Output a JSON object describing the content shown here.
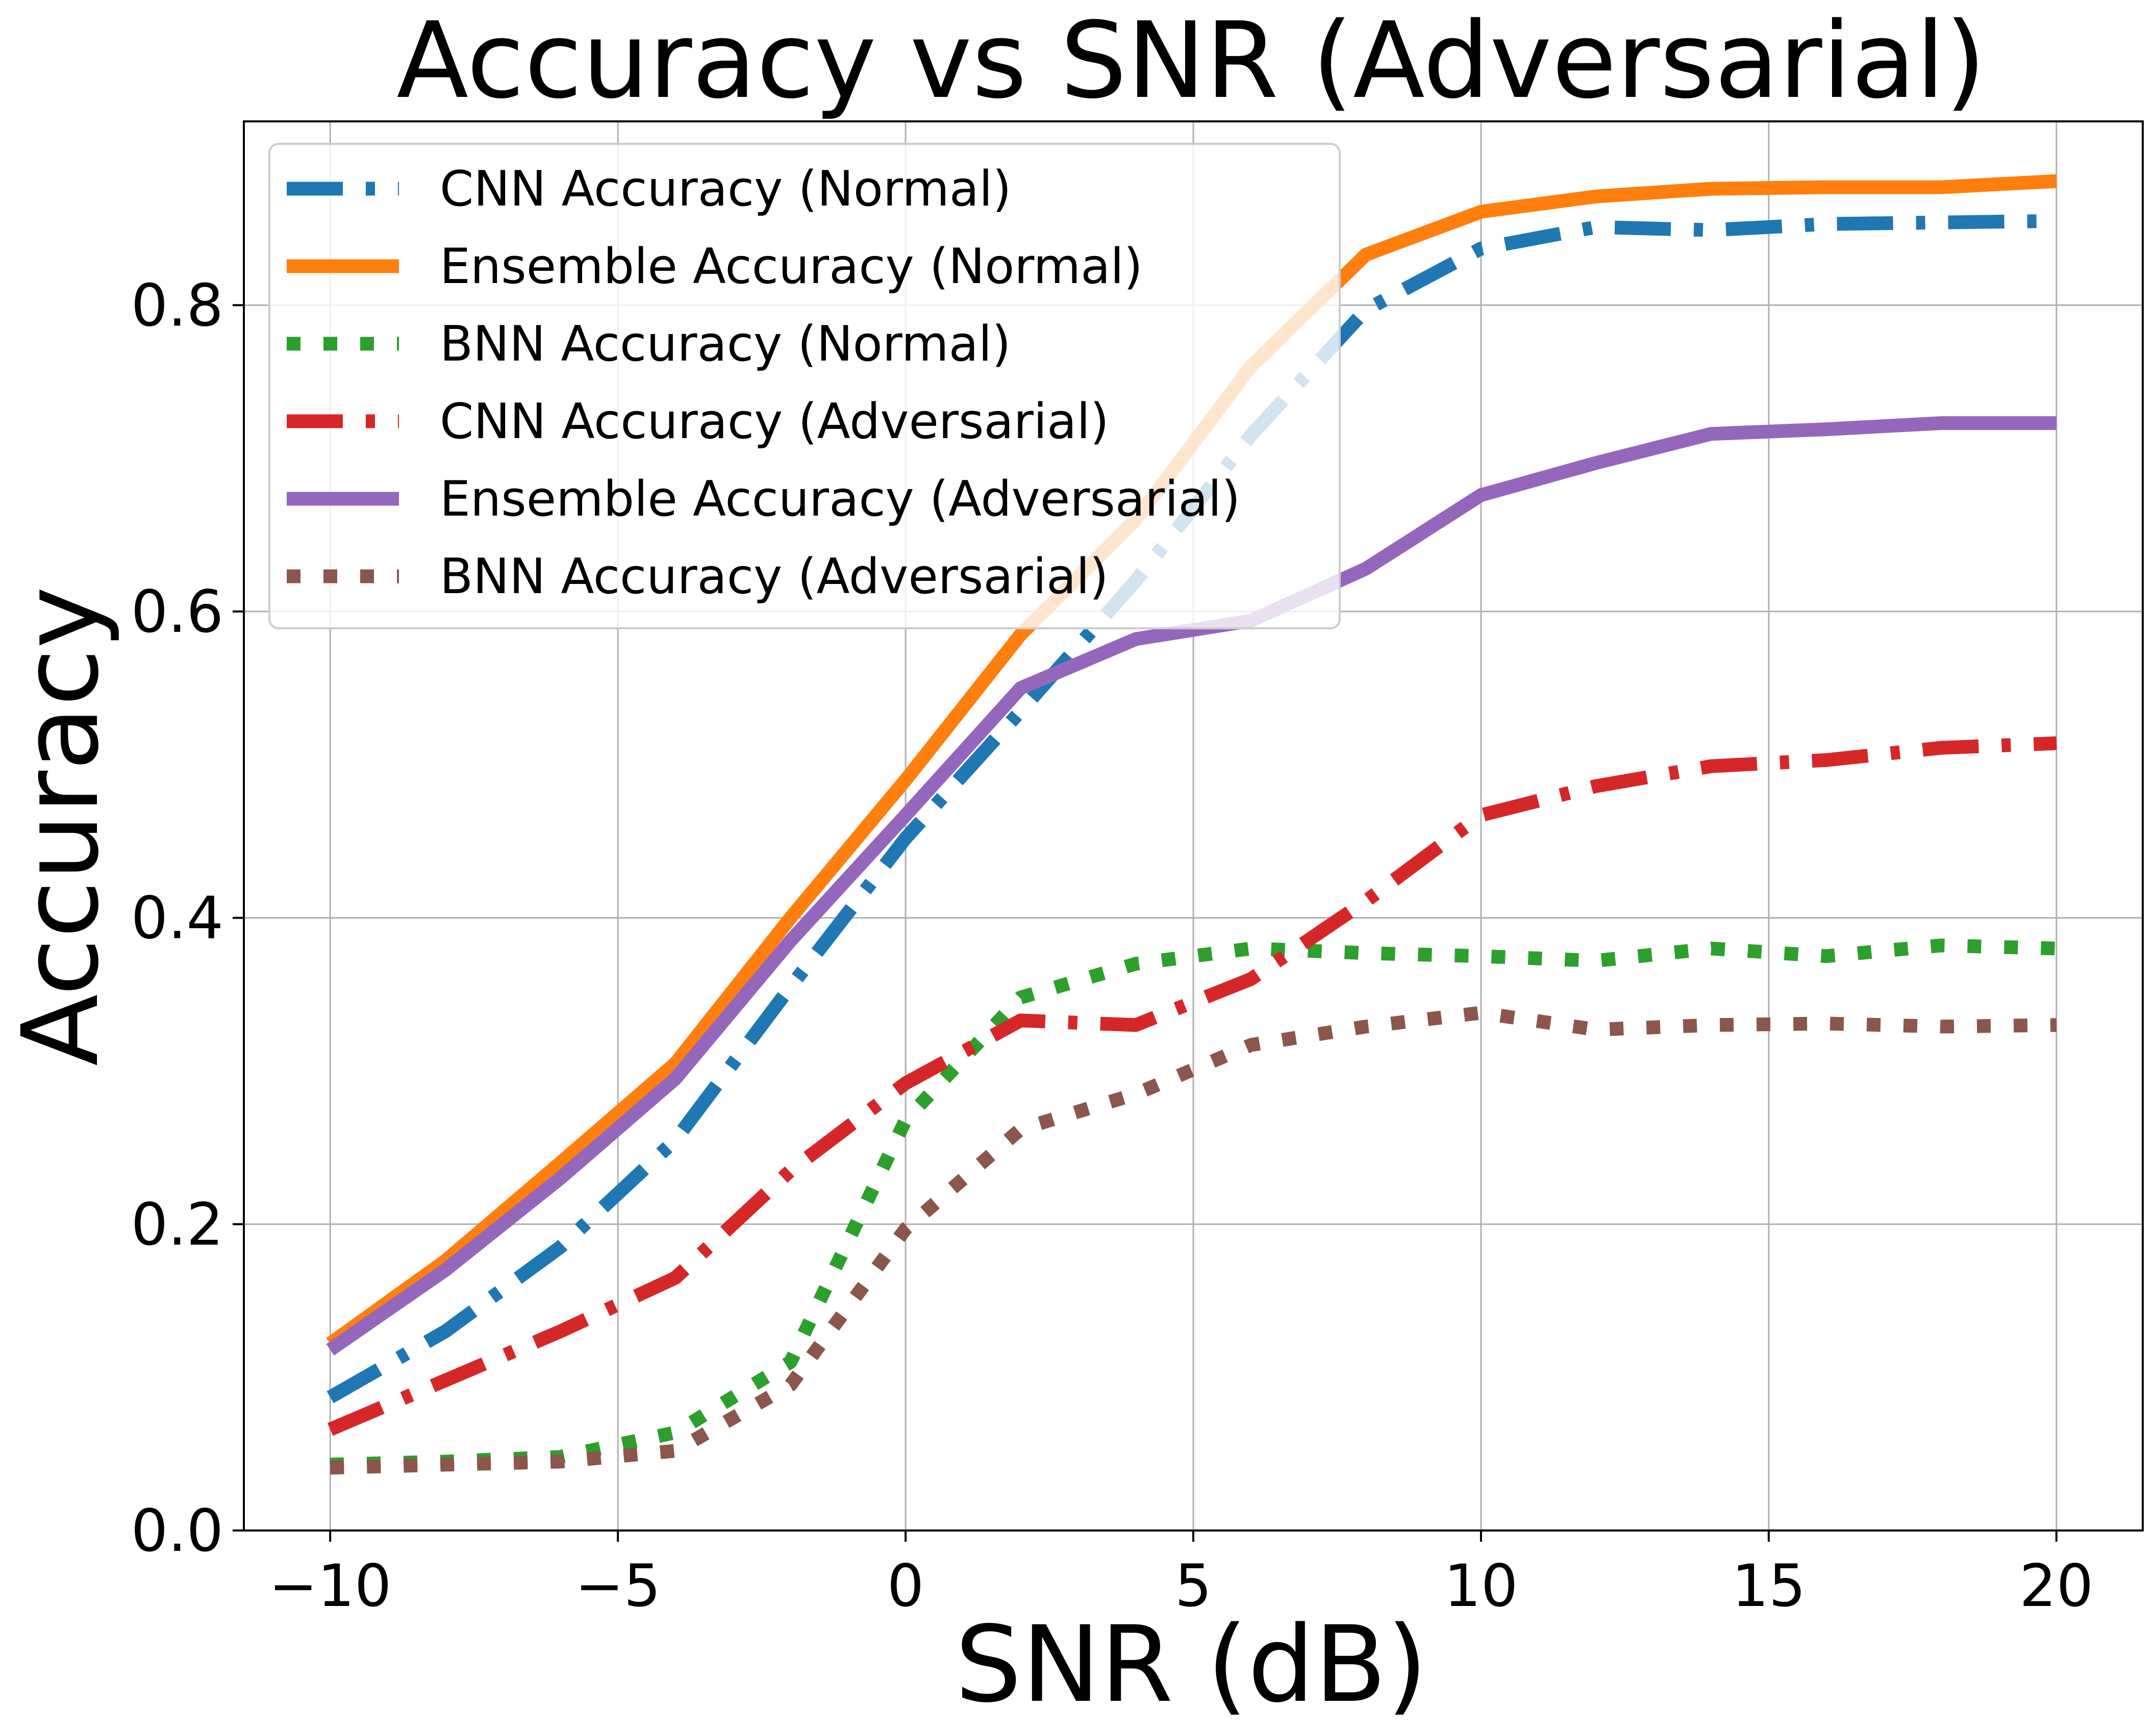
{
  "chart_data": {
    "type": "line",
    "title": "Accuracy vs SNR (Adversarial)",
    "xlabel": "SNR (dB)",
    "ylabel": "Accuracy",
    "xlim": [
      -11.5,
      21.5
    ],
    "ylim": [
      0.0,
      0.92
    ],
    "grid": true,
    "legend_position": "upper-left",
    "x_ticks": [
      -10,
      -5,
      0,
      5,
      10,
      15,
      20
    ],
    "x_tick_labels": [
      "−10",
      "−5",
      "0",
      "5",
      "10",
      "15",
      "20"
    ],
    "y_ticks": [
      0.0,
      0.2,
      0.4,
      0.6,
      0.8
    ],
    "y_tick_labels": [
      "0.0",
      "0.2",
      "0.4",
      "0.6",
      "0.8"
    ],
    "x": [
      -10,
      -8,
      -6,
      -4,
      -2,
      0,
      2,
      4,
      6,
      8,
      10,
      12,
      14,
      16,
      18,
      20
    ],
    "series": [
      {
        "name": "CNN Accuracy (Normal)",
        "color": "#1f77b4",
        "style": "dashdot",
        "values": [
          0.087,
          0.13,
          0.185,
          0.255,
          0.355,
          0.452,
          0.535,
          0.62,
          0.715,
          0.797,
          0.837,
          0.851,
          0.849,
          0.853,
          0.854,
          0.855
        ]
      },
      {
        "name": "Ensemble Accuracy (Normal)",
        "color": "#ff7f0e",
        "style": "solid",
        "values": [
          0.122,
          0.176,
          0.24,
          0.305,
          0.4,
          0.49,
          0.585,
          0.66,
          0.76,
          0.833,
          0.861,
          0.871,
          0.876,
          0.877,
          0.877,
          0.881
        ]
      },
      {
        "name": "BNN Accuracy (Normal)",
        "color": "#2ca02c",
        "style": "dotted",
        "values": [
          0.043,
          0.045,
          0.048,
          0.064,
          0.11,
          0.268,
          0.348,
          0.37,
          0.38,
          0.377,
          0.375,
          0.372,
          0.38,
          0.375,
          0.382,
          0.38
        ]
      },
      {
        "name": "CNN Accuracy (Adversarial)",
        "color": "#d62728",
        "style": "dashdot",
        "values": [
          0.066,
          0.098,
          0.13,
          0.165,
          0.235,
          0.292,
          0.333,
          0.33,
          0.36,
          0.411,
          0.467,
          0.486,
          0.499,
          0.503,
          0.511,
          0.514
        ]
      },
      {
        "name": "Ensemble Accuracy (Adversarial)",
        "color": "#9467bd",
        "style": "solid",
        "values": [
          0.118,
          0.17,
          0.23,
          0.295,
          0.385,
          0.467,
          0.55,
          0.582,
          0.594,
          0.628,
          0.676,
          0.697,
          0.716,
          0.719,
          0.723,
          0.723
        ]
      },
      {
        "name": "BNN Accuracy (Adversarial)",
        "color": "#8c564b",
        "style": "dotted",
        "values": [
          0.041,
          0.043,
          0.045,
          0.052,
          0.095,
          0.197,
          0.262,
          0.285,
          0.317,
          0.329,
          0.338,
          0.327,
          0.33,
          0.331,
          0.329,
          0.33
        ]
      }
    ]
  }
}
